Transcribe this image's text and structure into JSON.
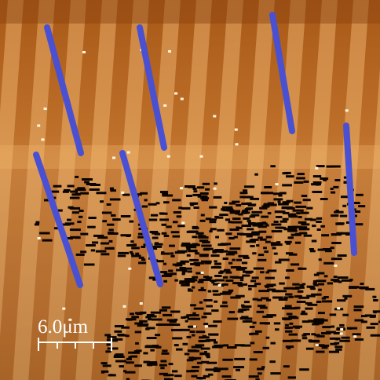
{
  "scale_bar": {
    "label": "6.0μm"
  }
}
